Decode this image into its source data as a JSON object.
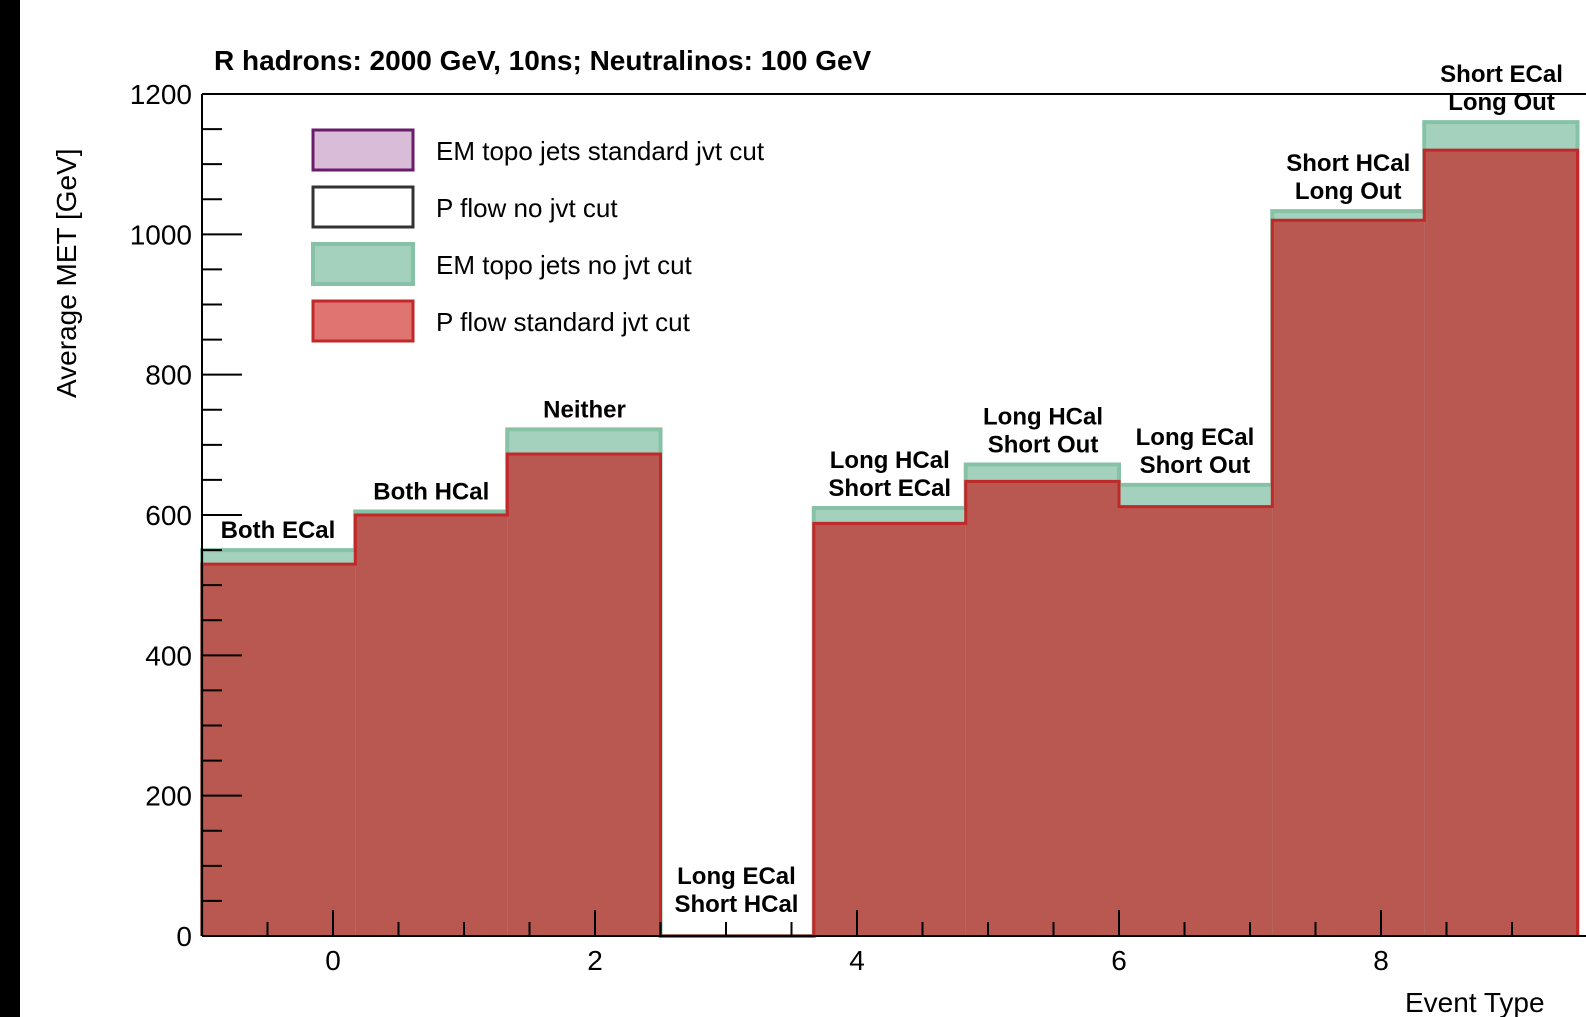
{
  "chart_data": {
    "type": "bar",
    "title": "R hadrons: 2000 GeV, 10ns;  Neutralinos: 100 GeV",
    "xlabel": "Event Type",
    "ylabel": "Average MET [GeV]",
    "ylim": [
      0,
      1200
    ],
    "xlim": [
      -1,
      11
    ],
    "x_ticks": [
      0,
      2,
      4,
      6,
      8
    ],
    "y_ticks": [
      0,
      200,
      400,
      600,
      800,
      1000,
      1200
    ],
    "bins": [
      {
        "center": -0.42,
        "low": -1.0,
        "high": 0.17
      },
      {
        "center": 0.75,
        "low": 0.17,
        "high": 1.33
      },
      {
        "center": 1.92,
        "low": 1.33,
        "high": 2.5
      },
      {
        "center": 3.08,
        "low": 2.5,
        "high": 3.67
      },
      {
        "center": 4.25,
        "low": 3.67,
        "high": 4.83
      },
      {
        "center": 5.42,
        "low": 4.83,
        "high": 6.0
      },
      {
        "center": 6.58,
        "low": 6.0,
        "high": 7.17
      },
      {
        "center": 7.75,
        "low": 7.17,
        "high": 8.33
      },
      {
        "center": 8.92,
        "low": 8.33,
        "high": 9.5
      }
    ],
    "bin_labels": [
      [
        "Both ECal"
      ],
      [
        "Both HCal"
      ],
      [
        "Neither"
      ],
      [
        "Long ECal",
        "Short HCal"
      ],
      [
        "Long HCal",
        "Short ECal"
      ],
      [
        "Long HCal",
        "Short Out"
      ],
      [
        "Long ECal",
        "Short Out"
      ],
      [
        "Short HCal",
        "Long Out"
      ],
      [
        "Short ECal",
        "Long Out"
      ]
    ],
    "series": [
      {
        "name": "EM topo jets standard jvt cut",
        "values": [
          550,
          605,
          722,
          0,
          610,
          672,
          643,
          1033,
          1160
        ],
        "fill": "#d8bcd8",
        "line": "#6a1b6a"
      },
      {
        "name": "P flow no jvt cut",
        "values": [
          550,
          605,
          722,
          0,
          610,
          672,
          643,
          1033,
          1160
        ],
        "fill": "none",
        "line": "#333333"
      },
      {
        "name": "EM topo jets no jvt cut",
        "values": [
          550,
          605,
          722,
          0,
          610,
          672,
          643,
          1033,
          1160
        ],
        "fill": "#a3d1be",
        "line": "#86c2a6"
      },
      {
        "name": "P flow standard jvt cut",
        "values": [
          530,
          600,
          687,
          0,
          588,
          648,
          612,
          1020,
          1120
        ],
        "fill": "#b85850",
        "line": "#c0282a"
      }
    ],
    "legend_placement": "top-left"
  }
}
